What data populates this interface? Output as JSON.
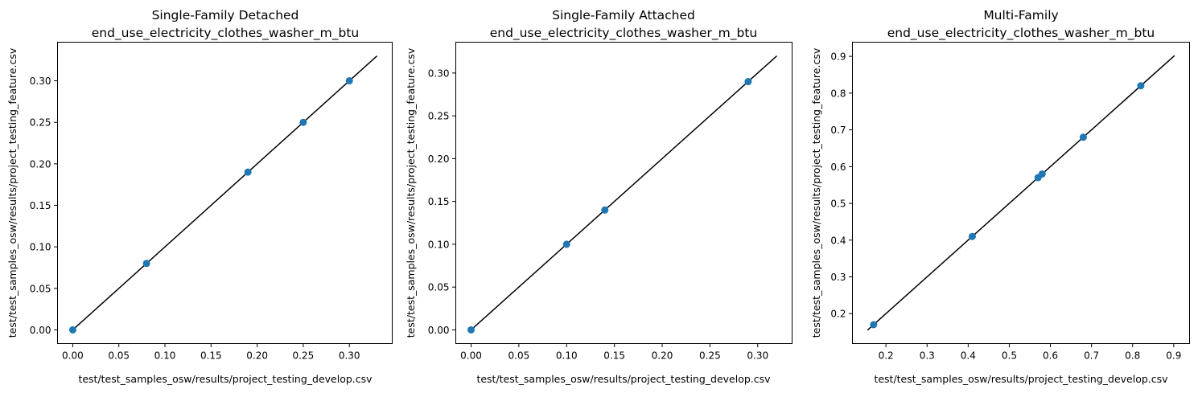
{
  "chart_data": [
    {
      "type": "scatter",
      "title_line1": "Single-Family Detached",
      "title_line2": "end_use_electricity_clothes_washer_m_btu",
      "xlabel": "test/test_samples_osw/results/project_testing_develop.csv",
      "ylabel": "test/test_samples_osw/results/project_testing_feature.csv",
      "xlim": [
        -0.0165,
        0.3465
      ],
      "ylim": [
        -0.0165,
        0.3465
      ],
      "xticks": [
        0.0,
        0.05,
        0.1,
        0.15,
        0.2,
        0.25,
        0.3
      ],
      "xtick_labels": [
        "0.00",
        "0.05",
        "0.10",
        "0.15",
        "0.20",
        "0.25",
        "0.30"
      ],
      "yticks": [
        0.0,
        0.05,
        0.1,
        0.15,
        0.2,
        0.25,
        0.3
      ],
      "ytick_labels": [
        "0.00",
        "0.05",
        "0.10",
        "0.15",
        "0.20",
        "0.25",
        "0.30"
      ],
      "points": [
        [
          0.0,
          0.0
        ],
        [
          0.08,
          0.08
        ],
        [
          0.19,
          0.19
        ],
        [
          0.25,
          0.25
        ],
        [
          0.3,
          0.3
        ]
      ],
      "line": [
        [
          0.0,
          0.0
        ],
        [
          0.33,
          0.33
        ]
      ],
      "marker_color": "#1f77b4",
      "line_color": "#000000",
      "grid": false
    },
    {
      "type": "scatter",
      "title_line1": "Single-Family Attached",
      "title_line2": "end_use_electricity_clothes_washer_m_btu",
      "xlabel": "test/test_samples_osw/results/project_testing_develop.csv",
      "ylabel": "test/test_samples_osw/results/project_testing_feature.csv",
      "xlim": [
        -0.016,
        0.336
      ],
      "ylim": [
        -0.016,
        0.336
      ],
      "xticks": [
        0.0,
        0.05,
        0.1,
        0.15,
        0.2,
        0.25,
        0.3
      ],
      "xtick_labels": [
        "0.00",
        "0.05",
        "0.10",
        "0.15",
        "0.20",
        "0.25",
        "0.30"
      ],
      "yticks": [
        0.0,
        0.05,
        0.1,
        0.15,
        0.2,
        0.25,
        0.3
      ],
      "ytick_labels": [
        "0.00",
        "0.05",
        "0.10",
        "0.15",
        "0.20",
        "0.25",
        "0.30"
      ],
      "points": [
        [
          0.0,
          0.0
        ],
        [
          0.1,
          0.1
        ],
        [
          0.14,
          0.14
        ],
        [
          0.29,
          0.29
        ]
      ],
      "line": [
        [
          0.0,
          0.0
        ],
        [
          0.32,
          0.32
        ]
      ],
      "marker_color": "#1f77b4",
      "line_color": "#000000",
      "grid": false
    },
    {
      "type": "scatter",
      "title_line1": "Multi-Family",
      "title_line2": "end_use_electricity_clothes_washer_m_btu",
      "xlabel": "test/test_samples_osw/results/project_testing_develop.csv",
      "ylabel": "test/test_samples_osw/results/project_testing_feature.csv",
      "xlim": [
        0.1185,
        0.9385
      ],
      "ylim": [
        0.1185,
        0.9385
      ],
      "xticks": [
        0.2,
        0.3,
        0.4,
        0.5,
        0.6,
        0.7,
        0.8,
        0.9
      ],
      "xtick_labels": [
        "0.2",
        "0.3",
        "0.4",
        "0.5",
        "0.6",
        "0.7",
        "0.8",
        "0.9"
      ],
      "yticks": [
        0.2,
        0.3,
        0.4,
        0.5,
        0.6,
        0.7,
        0.8,
        0.9
      ],
      "ytick_labels": [
        "0.2",
        "0.3",
        "0.4",
        "0.5",
        "0.6",
        "0.7",
        "0.8",
        "0.9"
      ],
      "points": [
        [
          0.17,
          0.17
        ],
        [
          0.41,
          0.41
        ],
        [
          0.57,
          0.57
        ],
        [
          0.58,
          0.58
        ],
        [
          0.68,
          0.68
        ],
        [
          0.82,
          0.82
        ]
      ],
      "line": [
        [
          0.155,
          0.155
        ],
        [
          0.902,
          0.902
        ]
      ],
      "marker_color": "#1f77b4",
      "line_color": "#000000",
      "grid": false
    }
  ]
}
